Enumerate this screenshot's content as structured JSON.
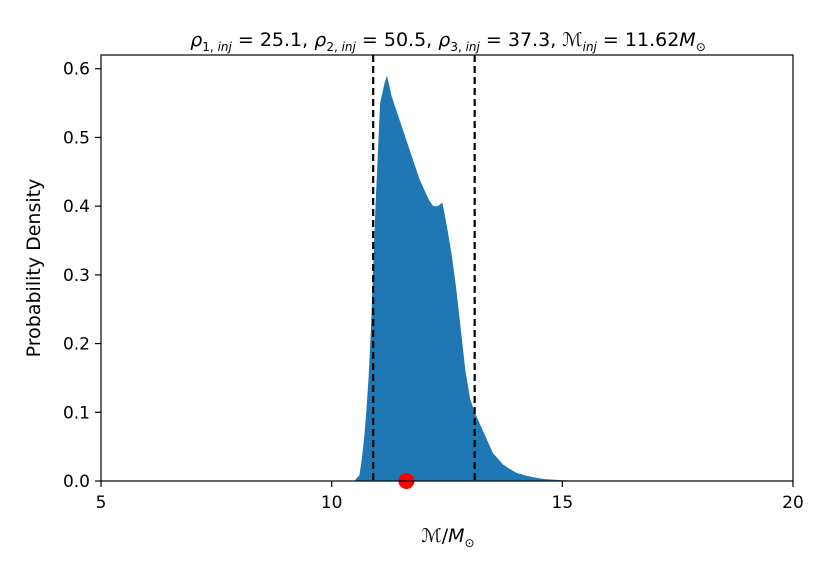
{
  "chart_data": {
    "type": "area",
    "title_parts": {
      "rho1": "25.1",
      "rho2": "50.5",
      "rho3": "37.3",
      "mchirp": "11.62"
    },
    "xlabel": "M/M⊙",
    "ylabel": "Probability Density",
    "xlim": [
      5,
      20
    ],
    "ylim": [
      0,
      0.62
    ],
    "xticks": [
      5,
      10,
      15,
      20
    ],
    "yticks": [
      0.0,
      0.1,
      0.2,
      0.3,
      0.4,
      0.5,
      0.6
    ],
    "grid": false,
    "series": [
      {
        "x": [
          10.5,
          10.55,
          10.6,
          10.65,
          10.7,
          10.75,
          10.8,
          10.85,
          10.95,
          11.05,
          11.15,
          11.2,
          11.25,
          11.3,
          11.4,
          11.5,
          11.6,
          11.7,
          11.8,
          11.9,
          12.0,
          12.1,
          12.2,
          12.3,
          12.4,
          12.5,
          12.6,
          12.7,
          12.8,
          12.9,
          13.0,
          13.1,
          13.2,
          13.3,
          13.4,
          13.5,
          13.6,
          13.7,
          13.8,
          14.0,
          14.2,
          14.4,
          14.6,
          14.8,
          15.0,
          15.3,
          15.6
        ],
        "y": [
          0.0,
          0.005,
          0.008,
          0.03,
          0.06,
          0.1,
          0.15,
          0.22,
          0.4,
          0.55,
          0.58,
          0.59,
          0.575,
          0.56,
          0.54,
          0.52,
          0.5,
          0.48,
          0.46,
          0.44,
          0.425,
          0.41,
          0.4,
          0.4,
          0.405,
          0.37,
          0.33,
          0.28,
          0.22,
          0.16,
          0.12,
          0.1,
          0.085,
          0.07,
          0.055,
          0.04,
          0.033,
          0.025,
          0.02,
          0.012,
          0.008,
          0.005,
          0.003,
          0.002,
          0.001,
          0.0005,
          0.0
        ]
      }
    ],
    "vlines": [
      10.9,
      13.1
    ],
    "injected_marker": {
      "x": 11.62,
      "y": 0.0
    },
    "colors": {
      "fill": "#1f77b4",
      "marker": "#ff0000",
      "vline": "#000000",
      "axes": "#000000"
    }
  }
}
